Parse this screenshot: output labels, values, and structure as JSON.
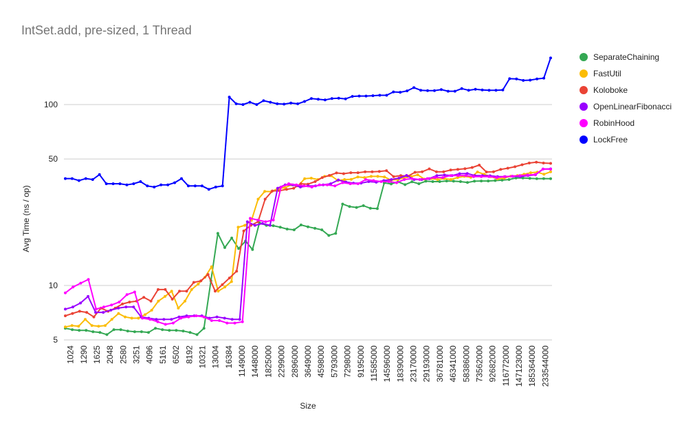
{
  "chart_data": {
    "type": "line",
    "title": "IntSet.add, pre-sized, 1 Thread",
    "xlabel": "Size",
    "ylabel": "Avg Time (ns / op)",
    "yscale": "log",
    "ylim": [
      5,
      200
    ],
    "yticks": [
      5,
      10,
      50,
      100
    ],
    "grid": true,
    "legend_position": "right",
    "x_tick_labels": [
      "1024",
      "1290",
      "1625",
      "2048",
      "2580",
      "3251",
      "4096",
      "5161",
      "6502",
      "8192",
      "10321",
      "13004",
      "16384",
      "1149000",
      "1448000",
      "1825000",
      "2299000",
      "2896000",
      "3649000",
      "4598000",
      "5793000",
      "7298000",
      "9195000",
      "11585000",
      "14596000",
      "18390000",
      "23170000",
      "29193000",
      "36781000",
      "46341000",
      "58386000",
      "73562000",
      "92682000",
      "116772000",
      "147123000",
      "185364000",
      "233544000"
    ],
    "series": [
      {
        "name": "SeparateChaining",
        "color": "#34a853",
        "values": [
          5.8,
          5.7,
          5.65,
          5.65,
          5.55,
          5.5,
          5.35,
          5.7,
          5.7,
          5.6,
          5.55,
          5.55,
          5.5,
          5.8,
          5.7,
          5.65,
          5.65,
          5.6,
          5.5,
          5.35,
          5.8,
          10.6,
          19.4,
          16.2,
          18.3,
          16.0,
          17.6,
          15.8,
          22.2,
          21.5,
          21.4,
          21.0,
          20.5,
          20.3,
          21.6,
          21.1,
          20.7,
          20.3,
          18.9,
          19.4,
          28.2,
          27.3,
          27.0,
          27.6,
          26.7,
          26.6,
          36.9,
          36.4,
          37.4,
          36.1,
          37.4,
          36.5,
          37.7,
          37.5,
          37.5,
          37.8,
          37.7,
          37.5,
          37.1,
          37.7,
          37.8,
          37.8,
          38.0,
          38.2,
          38.5,
          39.3,
          39.3,
          39.1,
          38.9,
          39.0,
          38.9
        ]
      },
      {
        "name": "FastUtil",
        "color": "#fbbc04",
        "values": [
          5.9,
          6.0,
          5.95,
          6.5,
          6.0,
          5.95,
          6.0,
          6.5,
          7.0,
          6.7,
          6.6,
          6.6,
          6.9,
          7.3,
          8.2,
          8.7,
          9.3,
          7.5,
          8.2,
          9.5,
          10.2,
          11.1,
          12.7,
          9.3,
          9.8,
          10.5,
          21.0,
          21.5,
          22.9,
          30.0,
          33.1,
          33.0,
          34.4,
          34.7,
          36.0,
          35.5,
          38.9,
          39.2,
          38.5,
          40.1,
          40.4,
          38.0,
          38.5,
          38.6,
          39.8,
          39.5,
          40.1,
          40.1,
          39.8,
          38.2,
          38.5,
          39.4,
          40.0,
          40.9,
          38.7,
          39.0,
          38.5,
          39.0,
          38.5,
          39.5,
          40.1,
          39.6,
          42.4,
          41.2,
          40.0,
          38.8,
          39.2,
          40.2,
          40.5,
          41.2,
          42.0,
          42.3,
          41.2,
          42.5
        ]
      },
      {
        "name": "Koloboke",
        "color": "#ea4335",
        "values": [
          6.8,
          7.0,
          7.2,
          7.1,
          6.7,
          7.5,
          7.2,
          7.5,
          7.9,
          8.1,
          8.2,
          8.6,
          8.2,
          9.5,
          9.5,
          8.4,
          9.3,
          9.3,
          10.4,
          10.6,
          11.5,
          9.3,
          10.1,
          11.0,
          12.0,
          20.0,
          21.5,
          22.5,
          30.0,
          33.3,
          33.4,
          34.0,
          34.5,
          36.5,
          36.3,
          37.5,
          39.5,
          40.6,
          41.9,
          41.5,
          42.0,
          42.0,
          42.5,
          42.5,
          42.7,
          43.1,
          40.0,
          40.5,
          40.2,
          42.2,
          42.5,
          44.1,
          42.5,
          42.5,
          43.5,
          43.8,
          44.2,
          44.9,
          46.3,
          42.4,
          42.5,
          43.8,
          44.5,
          45.3,
          46.5,
          47.5,
          48.0,
          47.5,
          47.3
        ]
      },
      {
        "name": "OpenLinearFibonacci",
        "color": "#9900ff",
        "values": [
          7.4,
          7.6,
          8.0,
          8.7,
          7.1,
          7.1,
          7.3,
          7.5,
          7.6,
          7.6,
          6.7,
          6.6,
          6.5,
          6.5,
          6.5,
          6.7,
          6.8,
          6.8,
          6.8,
          6.6,
          6.7,
          6.6,
          6.5,
          6.5,
          22.5,
          21.5,
          22.0,
          21.5,
          34.5,
          36.0,
          36.0,
          35.0,
          35.5,
          35.5,
          36.0,
          36.5,
          38.3,
          37.3,
          36.8,
          36.8,
          37.5,
          37.2,
          38.0,
          38.5,
          39.2,
          40.6,
          38.5,
          38.5,
          39.0,
          40.5,
          40.8,
          40.5,
          41.5,
          41.6,
          40.5,
          40.5,
          40.4,
          40.0,
          40.0,
          40.1,
          40.0,
          40.5,
          40.9,
          44.0,
          44.1
        ]
      },
      {
        "name": "RobinHood",
        "color": "#ff00ff",
        "values": [
          9.1,
          9.8,
          10.3,
          10.8,
          7.4,
          7.6,
          7.8,
          8.1,
          8.9,
          9.2,
          6.6,
          6.5,
          6.3,
          6.1,
          6.2,
          6.6,
          6.7,
          6.8,
          6.7,
          6.4,
          6.4,
          6.2,
          6.2,
          6.3,
          23.5,
          23.0,
          22.5,
          23.0,
          35.0,
          36.5,
          36.0,
          35.5,
          35.0,
          36.0,
          36.0,
          35.5,
          37.0,
          36.5,
          36.5,
          38.5,
          38.0,
          37.5,
          37.5,
          37.0,
          38.5,
          39.0,
          38.5,
          39.0,
          39.5,
          39.5,
          40.5,
          40.5,
          40.5,
          40.0,
          40.0,
          40.0,
          39.5,
          40.0,
          40.2,
          40.5,
          40.8,
          41.0,
          44.0,
          43.9
        ]
      },
      {
        "name": "LockFree",
        "color": "#0000ff",
        "values": [
          39.0,
          39.0,
          38.0,
          39.0,
          38.5,
          41.0,
          36.5,
          36.5,
          36.5,
          36.0,
          36.5,
          37.5,
          35.5,
          35.0,
          36.0,
          36.0,
          37.0,
          39.0,
          35.5,
          35.5,
          35.5,
          34.0,
          35.0,
          35.5,
          110.0,
          101.0,
          100.0,
          103.0,
          100.0,
          105.0,
          103.0,
          101.0,
          100.5,
          102.0,
          101.0,
          104.0,
          108.0,
          107.0,
          106.0,
          108.0,
          108.5,
          107.5,
          111.0,
          111.5,
          111.5,
          112.0,
          112.5,
          112.5,
          117.5,
          117.0,
          119.0,
          124.0,
          120.0,
          119.5,
          119.5,
          121.0,
          118.5,
          118.5,
          122.5,
          120.0,
          121.5,
          120.5,
          120.0,
          120.0,
          120.5,
          139.0,
          138.5,
          136.0,
          136.5,
          138.5,
          140.0,
          181.0
        ]
      }
    ]
  }
}
